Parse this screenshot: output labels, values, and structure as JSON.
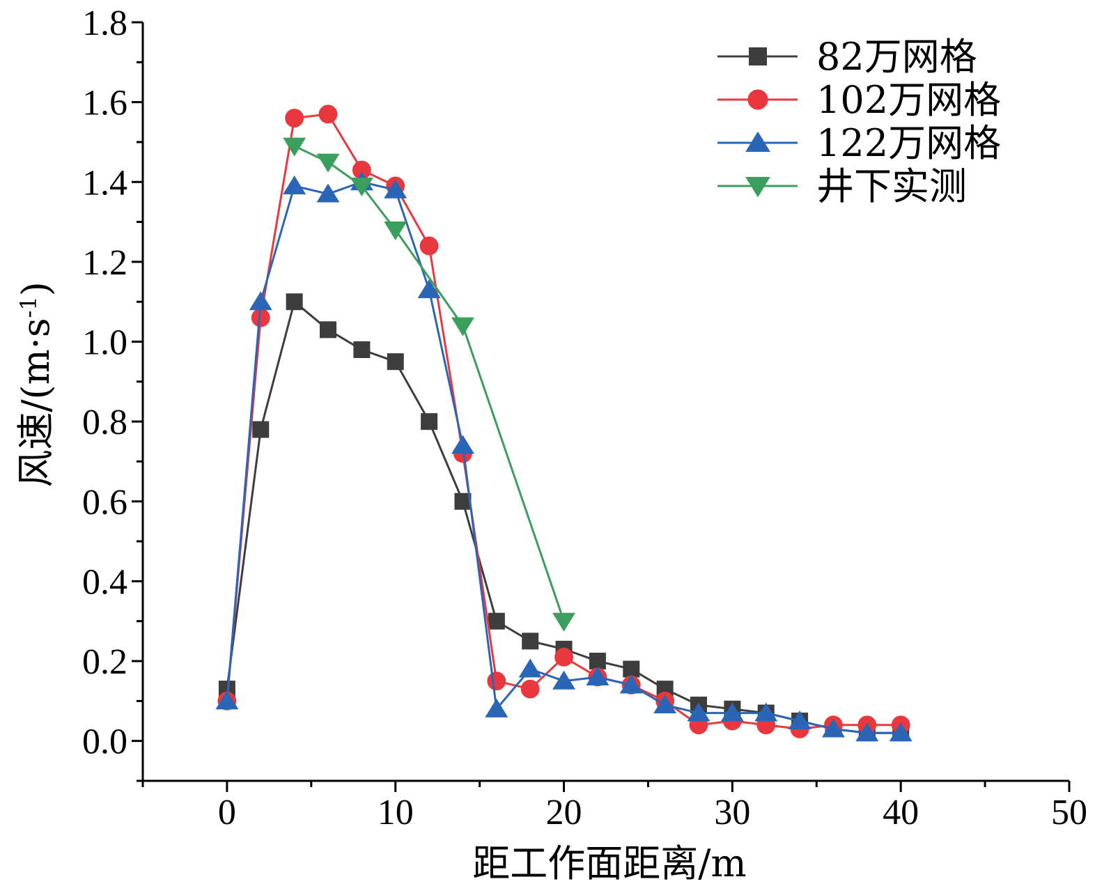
{
  "chart_data": {
    "type": "line",
    "xlabel": "距工作面距离/m",
    "ylabel": "风速/(m·s",
    "ylabel_sup": "-1",
    "ylabel_close": ")",
    "xlim": [
      -5,
      50
    ],
    "ylim": [
      -0.1,
      1.8
    ],
    "xticks": [
      0,
      10,
      20,
      30,
      40,
      50
    ],
    "xtick_labels": [
      "0",
      "10",
      "20",
      "30",
      "40",
      "50"
    ],
    "yticks": [
      0.0,
      0.2,
      0.4,
      0.6,
      0.8,
      1.0,
      1.2,
      1.4,
      1.6,
      1.8
    ],
    "ytick_labels": [
      "0.0",
      "0.2",
      "0.4",
      "0.6",
      "0.8",
      "1.0",
      "1.2",
      "1.4",
      "1.6",
      "1.8"
    ],
    "legend_position": "top-right",
    "series": [
      {
        "name": "82万网格",
        "color": "#3d3d3d",
        "marker": "square",
        "x": [
          0,
          2,
          4,
          6,
          8,
          10,
          12,
          14,
          16,
          18,
          20,
          22,
          24,
          26,
          28,
          30,
          32,
          34,
          36,
          38,
          40
        ],
        "y": [
          0.13,
          0.78,
          1.1,
          1.03,
          0.98,
          0.95,
          0.8,
          0.6,
          0.3,
          0.25,
          0.23,
          0.2,
          0.18,
          0.13,
          0.09,
          0.08,
          0.07,
          0.05,
          0.03,
          0.02,
          0.02
        ]
      },
      {
        "name": "102万网格",
        "color": "#e8383d",
        "marker": "circle",
        "x": [
          0,
          2,
          4,
          6,
          8,
          10,
          12,
          14,
          16,
          18,
          20,
          22,
          24,
          26,
          28,
          30,
          32,
          34,
          36,
          38,
          40
        ],
        "y": [
          0.1,
          1.06,
          1.56,
          1.57,
          1.43,
          1.39,
          1.24,
          0.72,
          0.15,
          0.13,
          0.21,
          0.16,
          0.14,
          0.1,
          0.04,
          0.05,
          0.04,
          0.03,
          0.04,
          0.04,
          0.04
        ]
      },
      {
        "name": "122万网格",
        "color": "#2a66b5",
        "marker": "triangle-up",
        "x": [
          0,
          2,
          4,
          6,
          8,
          10,
          12,
          14,
          16,
          18,
          20,
          22,
          24,
          26,
          28,
          30,
          32,
          34,
          36,
          38,
          40
        ],
        "y": [
          0.1,
          1.1,
          1.39,
          1.37,
          1.4,
          1.38,
          1.13,
          0.74,
          0.08,
          0.18,
          0.15,
          0.16,
          0.14,
          0.09,
          0.07,
          0.07,
          0.07,
          0.05,
          0.03,
          0.02,
          0.02
        ]
      },
      {
        "name": "井下实测",
        "color": "#3a9e5c",
        "marker": "triangle-down",
        "x": [
          4,
          6,
          8,
          10,
          14,
          20
        ],
        "y": [
          1.49,
          1.45,
          1.39,
          1.28,
          1.04,
          0.3
        ]
      }
    ]
  }
}
